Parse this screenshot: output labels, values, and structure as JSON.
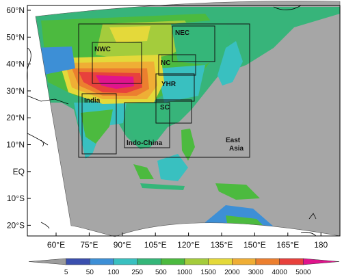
{
  "map": {
    "lat_labels": [
      "60°N",
      "50°N",
      "40°N",
      "30°N",
      "20°N",
      "10°N",
      "EQ",
      "10°S",
      "20°S"
    ],
    "lon_labels": [
      "60°E",
      "75°E",
      "90°E",
      "105°E",
      "120°E",
      "135°E",
      "150°E",
      "165°E",
      "180"
    ],
    "regions": [
      {
        "id": "nwc",
        "name": "NWC"
      },
      {
        "id": "nec",
        "name": "NEC"
      },
      {
        "id": "nc",
        "name": "NC"
      },
      {
        "id": "yhr",
        "name": "YHR"
      },
      {
        "id": "sc",
        "name": "SC"
      },
      {
        "id": "india",
        "name": "India"
      },
      {
        "id": "indochina",
        "name": "Indo-China"
      },
      {
        "id": "eastasia",
        "name": "East\nAsia"
      }
    ]
  },
  "colorbar": {
    "labels": [
      "5",
      "50",
      "100",
      "250",
      "500",
      "1000",
      "1500",
      "2000",
      "3000",
      "4000",
      "5000"
    ],
    "colors": [
      "#9c9c9c",
      "#3a4fae",
      "#3d8fd6",
      "#39c0c0",
      "#35b679",
      "#4cba3f",
      "#a4cc3c",
      "#e4d93a",
      "#efae35",
      "#ec7f2f",
      "#e8413c",
      "#e0148c"
    ]
  }
}
